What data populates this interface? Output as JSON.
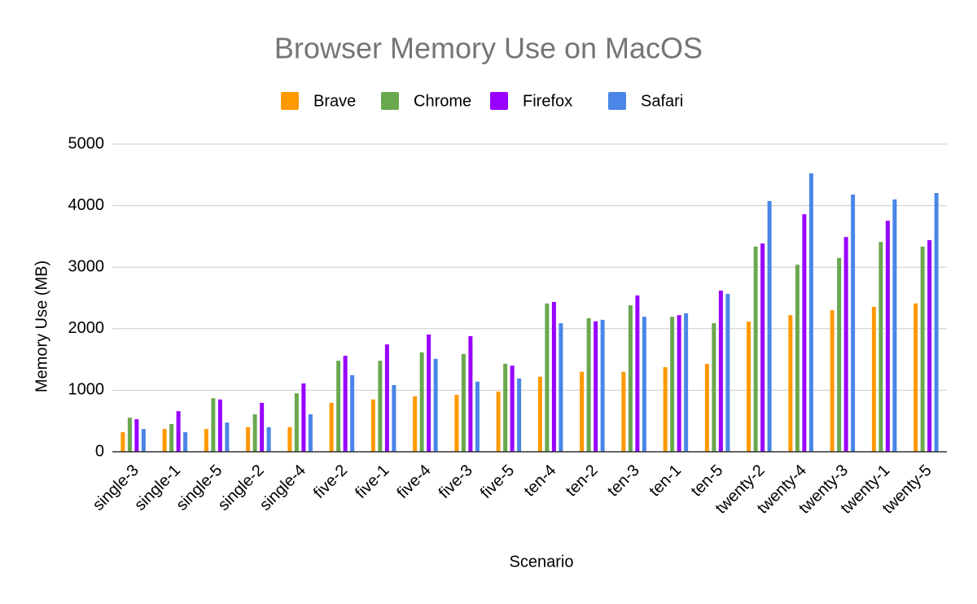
{
  "chart_data": {
    "type": "bar",
    "title": "Browser Memory Use on MacOS",
    "x_label": "Scenario",
    "y_label": "Memory Use (MB)",
    "categories": [
      "single-3",
      "single-1",
      "single-5",
      "single-2",
      "single-4",
      "five-2",
      "five-1",
      "five-4",
      "five-3",
      "five-5",
      "ten-4",
      "ten-2",
      "ten-3",
      "ten-1",
      "ten-5",
      "twenty-2",
      "twenty-4",
      "twenty-3",
      "twenty-1",
      "twenty-5"
    ],
    "series": [
      {
        "name": "Brave",
        "color": "#ff9900",
        "values": [
          320,
          370,
          370,
          400,
          400,
          795,
          850,
          900,
          925,
          980,
          1220,
          1300,
          1300,
          1375,
          1430,
          2115,
          2220,
          2300,
          2355,
          2410
        ]
      },
      {
        "name": "Chrome",
        "color": "#6aa84f",
        "values": [
          555,
          450,
          870,
          610,
          950,
          1480,
          1480,
          1615,
          1590,
          1430,
          2410,
          2170,
          2380,
          2195,
          2090,
          3335,
          3040,
          3150,
          3410,
          3335
        ]
      },
      {
        "name": "Firefox",
        "color": "#9900ff",
        "values": [
          530,
          660,
          850,
          795,
          1110,
          1560,
          1745,
          1905,
          1880,
          1400,
          2435,
          2120,
          2540,
          2220,
          2620,
          3385,
          3860,
          3490,
          3755,
          3440
        ]
      },
      {
        "name": "Safari",
        "color": "#4a86e8",
        "values": [
          370,
          320,
          475,
          400,
          610,
          1245,
          1085,
          1510,
          1140,
          1190,
          2090,
          2145,
          2195,
          2250,
          2565,
          4075,
          4525,
          4180,
          4100,
          4205
        ]
      }
    ],
    "ylim": [
      0,
      5000
    ],
    "yticks": [
      0,
      1000,
      2000,
      3000,
      4000,
      5000
    ],
    "grid": true,
    "legend": "top"
  }
}
